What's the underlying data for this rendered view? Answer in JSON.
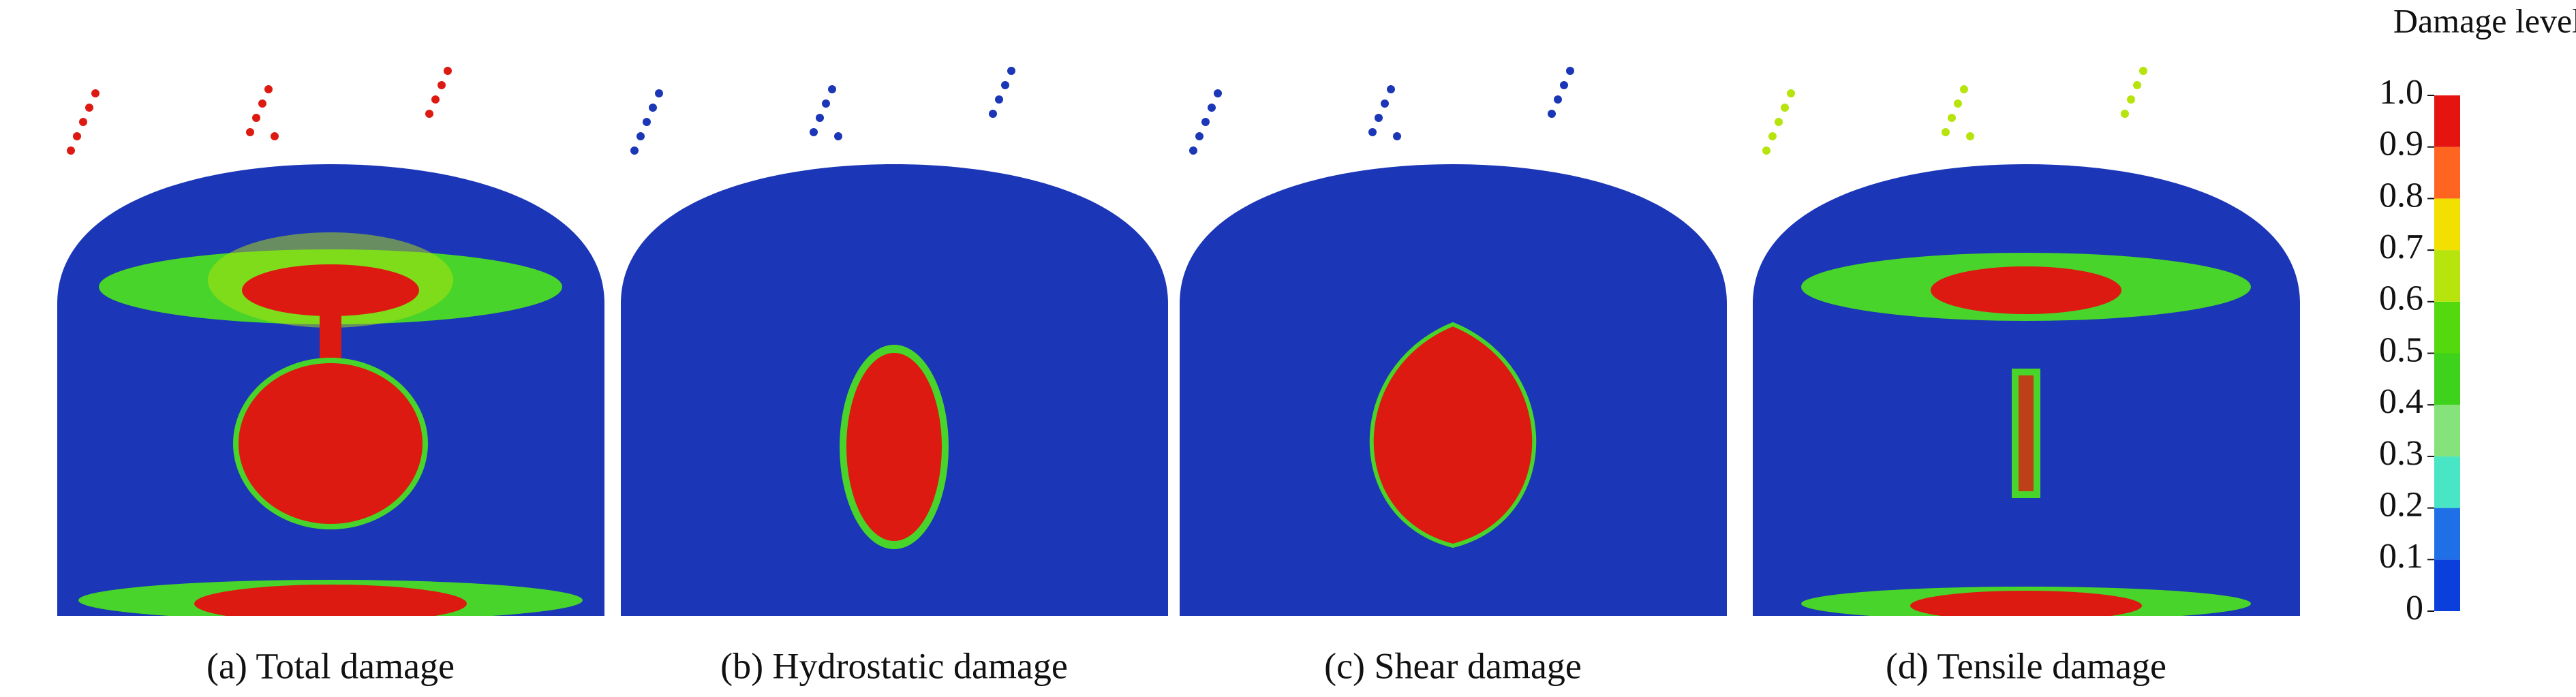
{
  "panels": [
    {
      "caption": "(a) Total damage"
    },
    {
      "caption": "(b) Hydrostatic damage"
    },
    {
      "caption": "(c) Shear damage"
    },
    {
      "caption": "(d) Tensile damage"
    }
  ],
  "colorbar": {
    "title": "Damage level",
    "ticks": [
      0,
      0.1,
      0.2,
      0.3,
      0.4,
      0.5,
      0.6,
      0.7,
      0.8,
      0.9,
      {
        "value": 1,
        "label": "1.0"
      }
    ],
    "colors": [
      "#0b3fdc",
      "#1f6fe6",
      "#48e6c4",
      "#86e27a",
      "#3fd21c",
      "#54d80e",
      "#b6e40c",
      "#f2e000",
      "#ff6420",
      "#e61410"
    ]
  }
}
